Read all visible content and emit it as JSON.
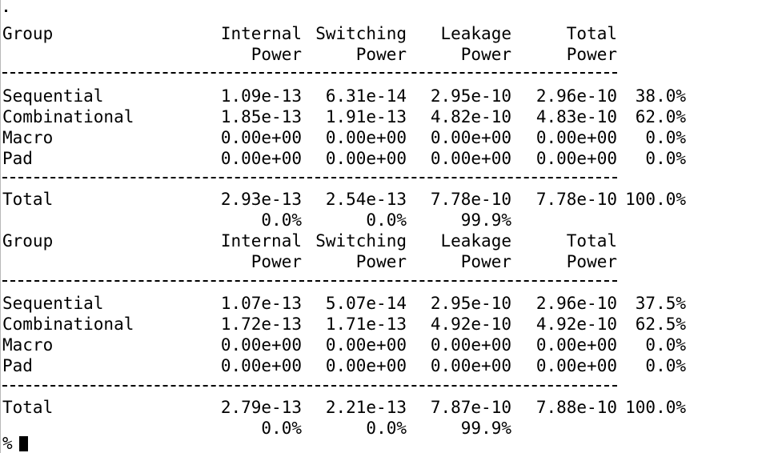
{
  "table1": {
    "header": {
      "group": "Group",
      "internal": [
        "Internal",
        "Power"
      ],
      "switching": [
        "Switching",
        "Power"
      ],
      "leakage": [
        "Leakage",
        "Power"
      ],
      "total": [
        "Total",
        "Power"
      ]
    },
    "rows": [
      {
        "group": "Sequential",
        "internal": "1.09e-13",
        "switching": "6.31e-14",
        "leakage": "2.95e-10",
        "total": "2.96e-10",
        "pct": "38.0%"
      },
      {
        "group": "Combinational",
        "internal": "1.85e-13",
        "switching": "1.91e-13",
        "leakage": "4.82e-10",
        "total": "4.83e-10",
        "pct": "62.0%"
      },
      {
        "group": "Macro",
        "internal": "0.00e+00",
        "switching": "0.00e+00",
        "leakage": "0.00e+00",
        "total": "0.00e+00",
        "pct": "0.0%"
      },
      {
        "group": "Pad",
        "internal": "0.00e+00",
        "switching": "0.00e+00",
        "leakage": "0.00e+00",
        "total": "0.00e+00",
        "pct": "0.0%"
      }
    ],
    "total": {
      "group": "Total",
      "internal": "2.93e-13",
      "switching": "2.54e-13",
      "leakage": "7.78e-10",
      "total": "7.78e-10",
      "pct": "100.0%"
    },
    "total_pct": {
      "internal": "0.0%",
      "switching": "0.0%",
      "leakage": "99.9%"
    }
  },
  "table2": {
    "header": {
      "group": "Group",
      "internal": [
        "Internal",
        "Power"
      ],
      "switching": [
        "Switching",
        "Power"
      ],
      "leakage": [
        "Leakage",
        "Power"
      ],
      "total": [
        "Total",
        "Power"
      ]
    },
    "rows": [
      {
        "group": "Sequential",
        "internal": "1.07e-13",
        "switching": "5.07e-14",
        "leakage": "2.95e-10",
        "total": "2.96e-10",
        "pct": "37.5%"
      },
      {
        "group": "Combinational",
        "internal": "1.72e-13",
        "switching": "1.71e-13",
        "leakage": "4.92e-10",
        "total": "4.92e-10",
        "pct": "62.5%"
      },
      {
        "group": "Macro",
        "internal": "0.00e+00",
        "switching": "0.00e+00",
        "leakage": "0.00e+00",
        "total": "0.00e+00",
        "pct": "0.0%"
      },
      {
        "group": "Pad",
        "internal": "0.00e+00",
        "switching": "0.00e+00",
        "leakage": "0.00e+00",
        "total": "0.00e+00",
        "pct": "0.0%"
      }
    ],
    "total": {
      "group": "Total",
      "internal": "2.79e-13",
      "switching": "2.21e-13",
      "leakage": "7.87e-10",
      "total": "7.88e-10",
      "pct": "100.0%"
    },
    "total_pct": {
      "internal": "0.0%",
      "switching": "0.0%",
      "leakage": "99.9%"
    }
  },
  "prompt": {
    "symbol": "%"
  },
  "colors": {
    "background": "#ffffff",
    "text": "#000000"
  }
}
